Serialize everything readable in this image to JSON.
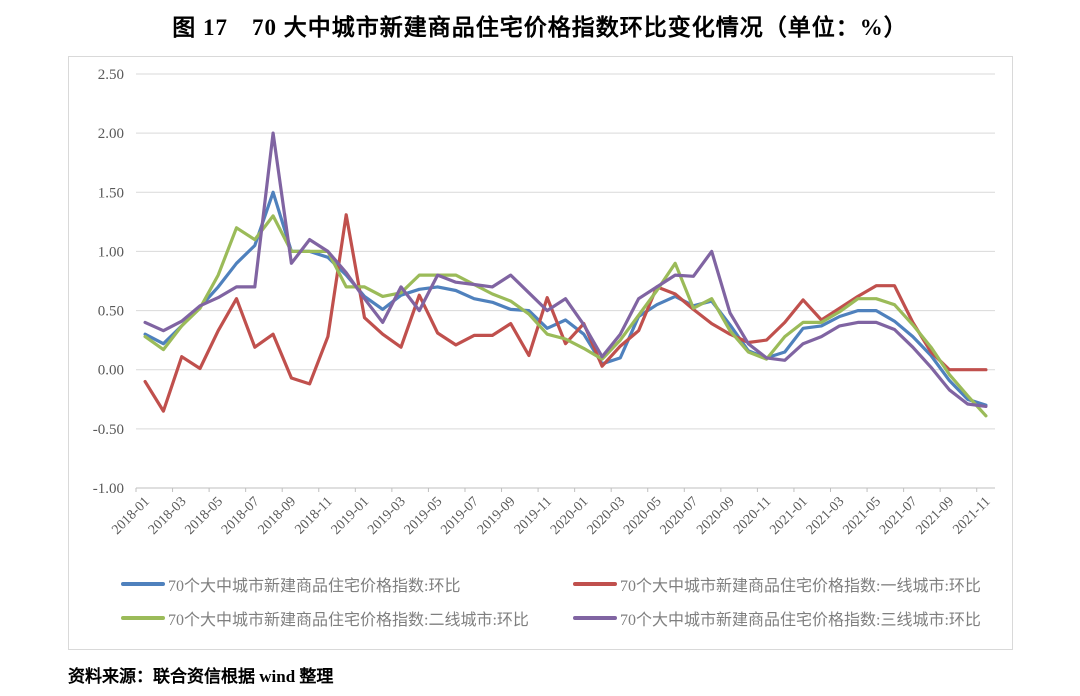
{
  "page": {
    "title": "图 17　70 大中城市新建商品住宅价格指数环比变化情况（单位：%）",
    "source_note": "资料来源：联合资信根据 wind 整理"
  },
  "chart_data": {
    "type": "line",
    "title": "图 17　70 大中城市新建商品住宅价格指数环比变化情况",
    "unit": "%",
    "xlabel": "",
    "ylabel": "",
    "ylim": [
      -1.0,
      2.5
    ],
    "y_tick_step": 0.5,
    "x_label_step": 2,
    "grid": "horizontal",
    "legend_position": "bottom",
    "x": [
      "2018-01",
      "2018-02",
      "2018-03",
      "2018-04",
      "2018-05",
      "2018-06",
      "2018-07",
      "2018-08",
      "2018-09",
      "2018-10",
      "2018-11",
      "2018-12",
      "2019-01",
      "2019-02",
      "2019-03",
      "2019-04",
      "2019-05",
      "2019-06",
      "2019-07",
      "2019-08",
      "2019-09",
      "2019-10",
      "2019-11",
      "2019-12",
      "2020-01",
      "2020-02",
      "2020-03",
      "2020-04",
      "2020-05",
      "2020-06",
      "2020-07",
      "2020-08",
      "2020-09",
      "2020-10",
      "2020-11",
      "2020-12",
      "2021-01",
      "2021-02",
      "2021-03",
      "2021-04",
      "2021-05",
      "2021-06",
      "2021-07",
      "2021-08",
      "2021-09",
      "2021-10",
      "2021-11"
    ],
    "series": [
      {
        "name": "70个大中城市新建商品住宅价格指数:环比",
        "color": "#4F81BD",
        "values": [
          0.3,
          0.22,
          0.37,
          0.53,
          0.7,
          0.9,
          1.05,
          1.5,
          1.0,
          1.0,
          0.95,
          0.8,
          0.62,
          0.51,
          0.63,
          0.68,
          0.7,
          0.67,
          0.6,
          0.57,
          0.51,
          0.5,
          0.35,
          0.42,
          0.3,
          0.05,
          0.1,
          0.45,
          0.55,
          0.62,
          0.54,
          0.58,
          0.38,
          0.16,
          0.1,
          0.15,
          0.35,
          0.37,
          0.45,
          0.5,
          0.5,
          0.41,
          0.28,
          0.12,
          -0.09,
          -0.25,
          -0.3
        ]
      },
      {
        "name": "70个大中城市新建商品住宅价格指数:一线城市:环比",
        "color": "#C0504D",
        "values": [
          -0.1,
          -0.35,
          0.11,
          0.01,
          0.33,
          0.6,
          0.19,
          0.3,
          -0.07,
          -0.12,
          0.28,
          1.31,
          0.44,
          0.3,
          0.19,
          0.63,
          0.31,
          0.21,
          0.29,
          0.29,
          0.39,
          0.12,
          0.61,
          0.22,
          0.39,
          0.03,
          0.2,
          0.33,
          0.7,
          0.64,
          0.51,
          0.39,
          0.3,
          0.23,
          0.25,
          0.4,
          0.59,
          0.42,
          0.52,
          0.62,
          0.71,
          0.71,
          0.4,
          0.15,
          0.0,
          0.0,
          0.0
        ]
      },
      {
        "name": "70个大中城市新建商品住宅价格指数:二线城市:环比",
        "color": "#9BBB59",
        "values": [
          0.28,
          0.17,
          0.37,
          0.52,
          0.8,
          1.2,
          1.1,
          1.3,
          1.0,
          1.0,
          1.0,
          0.7,
          0.7,
          0.62,
          0.65,
          0.8,
          0.8,
          0.8,
          0.72,
          0.64,
          0.58,
          0.47,
          0.3,
          0.26,
          0.18,
          0.09,
          0.25,
          0.46,
          0.67,
          0.9,
          0.52,
          0.6,
          0.33,
          0.15,
          0.09,
          0.28,
          0.4,
          0.4,
          0.49,
          0.6,
          0.6,
          0.55,
          0.38,
          0.19,
          -0.04,
          -0.22,
          -0.39
        ]
      },
      {
        "name": "70个大中城市新建商品住宅价格指数:三线城市:环比",
        "color": "#8064A2",
        "values": [
          0.4,
          0.33,
          0.41,
          0.54,
          0.61,
          0.7,
          0.7,
          2.0,
          0.9,
          1.1,
          1.0,
          0.82,
          0.6,
          0.4,
          0.7,
          0.5,
          0.8,
          0.74,
          0.72,
          0.7,
          0.8,
          0.65,
          0.5,
          0.6,
          0.38,
          0.11,
          0.3,
          0.6,
          0.7,
          0.8,
          0.79,
          1.0,
          0.48,
          0.22,
          0.1,
          0.08,
          0.22,
          0.28,
          0.37,
          0.4,
          0.4,
          0.34,
          0.19,
          0.02,
          -0.17,
          -0.29,
          -0.31
        ]
      }
    ],
    "style": {
      "gridline_color": "#d9d9d9",
      "axis_color": "#bfbfbf",
      "tick_label_color": "#595959",
      "legend_text_color": "#7f7f7f"
    }
  }
}
